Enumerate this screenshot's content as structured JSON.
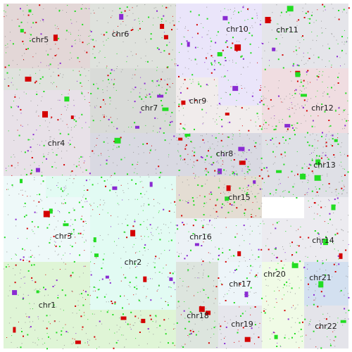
{
  "chromosomes": [
    {
      "name": "chr1",
      "color": "#dff5d6"
    },
    {
      "name": "chr2",
      "color": "#e2fbf3"
    },
    {
      "name": "chr3",
      "color": "#eef9f9"
    },
    {
      "name": "chr4",
      "color": "#e8e1e8"
    },
    {
      "name": "chr5",
      "color": "#e3d7d7"
    },
    {
      "name": "chr6",
      "color": "#dfe2dd"
    },
    {
      "name": "chr7",
      "color": "#d9dbd8"
    },
    {
      "name": "chr8",
      "color": "#d9d9e2"
    },
    {
      "name": "chr9",
      "color": "#f1ecec"
    },
    {
      "name": "chr10",
      "color": "#eae5fa"
    },
    {
      "name": "chr11",
      "color": "#e5e5ea"
    },
    {
      "name": "chr12",
      "color": "#f0dde1"
    },
    {
      "name": "chr13",
      "color": "#dfe0e6"
    },
    {
      "name": "chr14",
      "color": "#ecebf0"
    },
    {
      "name": "chr15",
      "color": "#e4ddd3"
    },
    {
      "name": "chr16",
      "color": "#ecf2f6"
    },
    {
      "name": "chr17",
      "color": "#edf5f9"
    },
    {
      "name": "chr18",
      "color": "#dde5de"
    },
    {
      "name": "chr19",
      "color": "#e6e6ec"
    },
    {
      "name": "chr20",
      "color": "#f0fbe6"
    },
    {
      "name": "chr21",
      "color": "#d3e0f0"
    },
    {
      "name": "chr22",
      "color": "#e4e4ea"
    }
  ],
  "marker_colors": {
    "green": "#22dd22",
    "red": "#d40000",
    "purple": "#8a2bd2",
    "gray": "#9a9a9a"
  }
}
